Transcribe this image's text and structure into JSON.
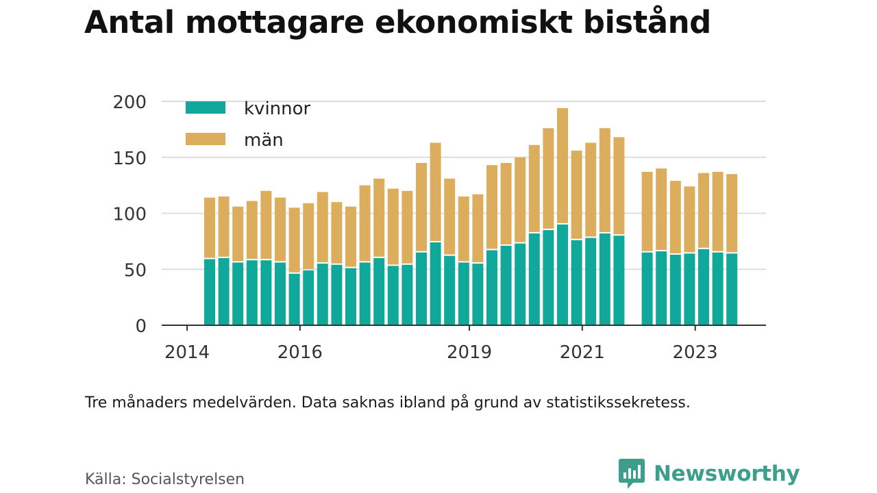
{
  "title": "Antal mottagare ekonomiskt bistånd",
  "note": "Tre månaders medelvärden. Data saknas ibland på grund av statistikssekretess.",
  "source": "Källa: Socialstyrelsen",
  "brand": "Newsworthy",
  "colors": {
    "kvinnor": "#0fa89a",
    "man": "#dbad5c",
    "grid": "#dddddd",
    "axis": "#333333",
    "brand": "#3d9e8c"
  },
  "chart_data": {
    "type": "bar",
    "stacked": true,
    "legend_position": "top-left",
    "grid": true,
    "ylim": [
      0,
      200
    ],
    "y_ticks": [
      "0",
      "50",
      "100",
      "150",
      "200"
    ],
    "x_ticks": [
      "2014",
      "2016",
      "2019",
      "2021",
      "2023"
    ],
    "series": [
      {
        "name": "kvinnor",
        "values": [
          59,
          60,
          56,
          58,
          58,
          56,
          46,
          49,
          55,
          54,
          51,
          56,
          60,
          53,
          54,
          65,
          74,
          62,
          56,
          55,
          67,
          71,
          73,
          82,
          85,
          90,
          76,
          78,
          82,
          80,
          null,
          65,
          66,
          63,
          64,
          68,
          65,
          64
        ]
      },
      {
        "name": "män",
        "values": [
          55,
          55,
          50,
          53,
          62,
          58,
          59,
          60,
          64,
          56,
          55,
          69,
          71,
          69,
          66,
          80,
          89,
          69,
          59,
          62,
          76,
          74,
          77,
          79,
          91,
          104,
          80,
          85,
          94,
          88,
          null,
          72,
          74,
          66,
          60,
          68,
          72,
          71
        ]
      }
    ]
  }
}
